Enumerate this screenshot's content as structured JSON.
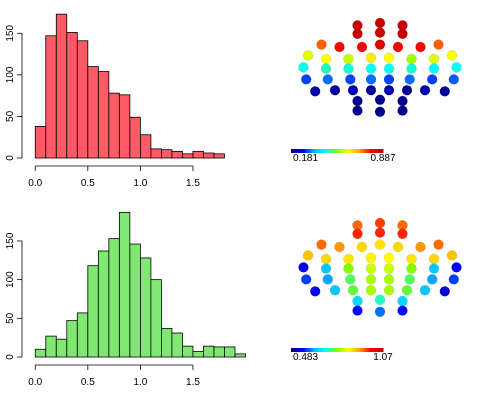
{
  "chart_data": [
    {
      "type": "bar",
      "subtype": "histogram",
      "fill_color": "#ff5a65",
      "bin_start": 0.0,
      "bin_width": 0.1,
      "values": [
        38,
        147,
        173,
        151,
        141,
        110,
        104,
        78,
        76,
        49,
        28,
        11,
        10,
        8,
        5,
        8,
        6,
        5
      ],
      "xlim": [
        -0.05,
        1.9
      ],
      "ylim": [
        0,
        178
      ],
      "x_ticks": [
        "0.0",
        "0.5",
        "1.0",
        "1.5"
      ],
      "x_tick_values": [
        0,
        0.5,
        1.0,
        1.5
      ],
      "y_ticks": [
        "0",
        "50",
        "100",
        "150"
      ],
      "y_tick_values": [
        0,
        50,
        100,
        150
      ]
    },
    {
      "type": "scatter",
      "subtype": "electrode-topography",
      "colormap": [
        "#00008b",
        "#0000ff",
        "#00bfff",
        "#00ffff",
        "#7fff00",
        "#ffff00",
        "#ffa500",
        "#ff0000",
        "#c80000"
      ],
      "colorbar_min_label": "0.181",
      "colorbar_max_label": "0.887",
      "value_min": 0.181,
      "value_max": 0.887,
      "points": [
        [
          -0.25,
          2.4,
          0.92
        ],
        [
          0,
          2.5,
          0.93
        ],
        [
          0.25,
          2.4,
          0.92
        ],
        [
          -0.25,
          2.05,
          0.9
        ],
        [
          0,
          2.1,
          0.9
        ],
        [
          0.25,
          2.05,
          0.9
        ],
        [
          -0.65,
          1.6,
          0.75
        ],
        [
          -0.45,
          1.5,
          0.8
        ],
        [
          -0.2,
          1.5,
          0.82
        ],
        [
          0,
          1.6,
          0.85
        ],
        [
          0.2,
          1.5,
          0.82
        ],
        [
          0.45,
          1.5,
          0.8
        ],
        [
          0.65,
          1.6,
          0.75
        ],
        [
          -0.8,
          1.15,
          0.6
        ],
        [
          -0.6,
          1.0,
          0.62
        ],
        [
          -0.35,
          1.0,
          0.58
        ],
        [
          -0.1,
          1.05,
          0.64
        ],
        [
          0.1,
          1.05,
          0.62
        ],
        [
          0.35,
          1.0,
          0.56
        ],
        [
          0.6,
          1.0,
          0.6
        ],
        [
          0.8,
          1.15,
          0.62
        ],
        [
          -0.85,
          0.65,
          0.45
        ],
        [
          -0.6,
          0.6,
          0.47
        ],
        [
          -0.35,
          0.6,
          0.46
        ],
        [
          -0.1,
          0.6,
          0.45
        ],
        [
          0.1,
          0.6,
          0.45
        ],
        [
          0.35,
          0.6,
          0.46
        ],
        [
          0.6,
          0.6,
          0.44
        ],
        [
          0.85,
          0.65,
          0.45
        ],
        [
          -0.82,
          0.15,
          0.3
        ],
        [
          -0.58,
          0.15,
          0.32
        ],
        [
          -0.33,
          0.15,
          0.3
        ],
        [
          -0.1,
          0.15,
          0.32
        ],
        [
          0.1,
          0.15,
          0.3
        ],
        [
          0.33,
          0.15,
          0.32
        ],
        [
          0.58,
          0.15,
          0.3
        ],
        [
          0.82,
          0.15,
          0.31
        ],
        [
          -0.72,
          -0.35,
          0.2
        ],
        [
          -0.5,
          -0.3,
          0.19
        ],
        [
          -0.3,
          -0.3,
          0.21
        ],
        [
          -0.1,
          -0.3,
          0.19
        ],
        [
          0.1,
          -0.3,
          0.2
        ],
        [
          0.3,
          -0.3,
          0.19
        ],
        [
          0.5,
          -0.3,
          0.2
        ],
        [
          0.72,
          -0.35,
          0.19
        ],
        [
          -0.25,
          -0.75,
          0.12
        ],
        [
          0,
          -0.7,
          0.12
        ],
        [
          0.25,
          -0.75,
          0.12
        ],
        [
          -0.25,
          -1.15,
          0.09
        ],
        [
          0,
          -1.2,
          0.09
        ],
        [
          0.25,
          -1.15,
          0.09
        ]
      ]
    },
    {
      "type": "bar",
      "subtype": "histogram",
      "fill_color": "#80e872",
      "bin_start": 0.0,
      "bin_width": 0.1,
      "values": [
        10,
        27,
        23,
        47,
        57,
        118,
        137,
        153,
        187,
        146,
        128,
        100,
        37,
        31,
        14,
        7,
        14,
        13,
        13,
        4
      ],
      "xlim": [
        -0.05,
        1.9
      ],
      "ylim": [
        0,
        190
      ],
      "x_ticks": [
        "0.0",
        "0.5",
        "1.0",
        "1.5"
      ],
      "x_tick_values": [
        0,
        0.5,
        1.0,
        1.5
      ],
      "y_ticks": [
        "0",
        "50",
        "100",
        "150"
      ],
      "y_tick_values": [
        0,
        50,
        100,
        150
      ]
    },
    {
      "type": "scatter",
      "subtype": "electrode-topography",
      "colormap": [
        "#00008b",
        "#0000ff",
        "#00bfff",
        "#00ffff",
        "#7fff00",
        "#ffff00",
        "#ffa500",
        "#ff0000",
        "#c80000"
      ],
      "colorbar_min_label": "0.483",
      "colorbar_max_label": "1.07",
      "value_min": 0.483,
      "value_max": 1.07,
      "points": [
        [
          -0.25,
          2.4,
          0.95
        ],
        [
          0,
          2.5,
          0.97
        ],
        [
          0.25,
          2.4,
          0.95
        ],
        [
          -0.25,
          2.05,
          0.98
        ],
        [
          0,
          2.1,
          0.98
        ],
        [
          0.25,
          2.05,
          0.98
        ],
        [
          -0.65,
          1.6,
          0.95
        ],
        [
          -0.45,
          1.5,
          0.93
        ],
        [
          -0.2,
          1.5,
          0.88
        ],
        [
          0,
          1.6,
          0.87
        ],
        [
          0.2,
          1.5,
          0.88
        ],
        [
          0.45,
          1.5,
          0.93
        ],
        [
          0.65,
          1.6,
          0.95
        ],
        [
          -0.8,
          1.15,
          0.9
        ],
        [
          -0.6,
          1.0,
          0.88
        ],
        [
          -0.35,
          1.0,
          0.87
        ],
        [
          -0.1,
          1.05,
          0.86
        ],
        [
          0.1,
          1.05,
          0.85
        ],
        [
          0.35,
          1.0,
          0.87
        ],
        [
          0.6,
          1.0,
          0.88
        ],
        [
          0.8,
          1.15,
          0.9
        ],
        [
          -0.85,
          0.65,
          0.55
        ],
        [
          -0.6,
          0.6,
          0.64
        ],
        [
          -0.35,
          0.6,
          0.78
        ],
        [
          -0.1,
          0.6,
          0.82
        ],
        [
          0.1,
          0.6,
          0.82
        ],
        [
          0.35,
          0.6,
          0.78
        ],
        [
          0.6,
          0.6,
          0.64
        ],
        [
          0.85,
          0.65,
          0.55
        ],
        [
          -0.82,
          0.15,
          0.58
        ],
        [
          -0.58,
          0.15,
          0.62
        ],
        [
          -0.33,
          0.15,
          0.75
        ],
        [
          -0.1,
          0.15,
          0.8
        ],
        [
          0.1,
          0.15,
          0.8
        ],
        [
          0.33,
          0.15,
          0.75
        ],
        [
          0.58,
          0.15,
          0.62
        ],
        [
          0.82,
          0.15,
          0.58
        ],
        [
          -0.72,
          -0.35,
          0.55
        ],
        [
          -0.5,
          -0.3,
          0.64
        ],
        [
          -0.3,
          -0.3,
          0.76
        ],
        [
          -0.1,
          -0.3,
          0.8
        ],
        [
          0.1,
          -0.3,
          0.8
        ],
        [
          0.3,
          -0.3,
          0.76
        ],
        [
          0.5,
          -0.3,
          0.64
        ],
        [
          0.72,
          -0.35,
          0.53
        ],
        [
          -0.25,
          -0.75,
          0.66
        ],
        [
          0,
          -0.7,
          0.72
        ],
        [
          0.25,
          -0.75,
          0.66
        ],
        [
          -0.25,
          -1.15,
          0.56
        ],
        [
          0,
          -1.2,
          0.6
        ],
        [
          0.25,
          -1.15,
          0.56
        ]
      ]
    }
  ]
}
